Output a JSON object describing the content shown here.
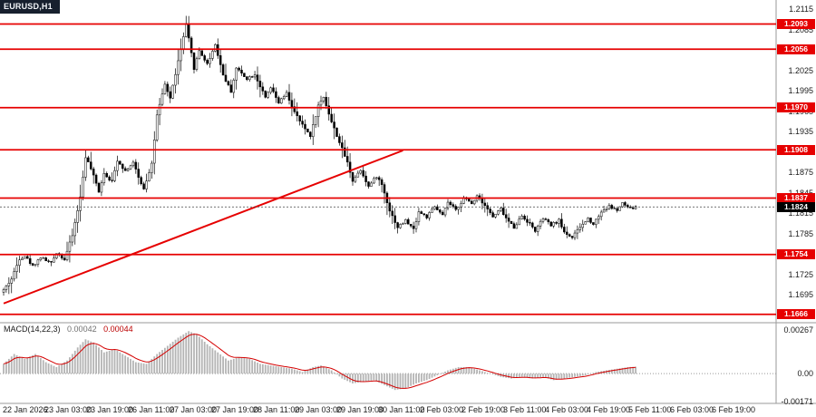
{
  "window": {
    "symbol_label": "EURUSD,H1"
  },
  "colors": {
    "line_red": "#e60000",
    "label_bg_red": "#e60000",
    "current_price_bg": "#000000",
    "candle": "#000000",
    "histogram_gray": "#b4b4b4",
    "signal_red": "#d40000",
    "axis_gray": "#9a9a9a"
  },
  "chart_data": {
    "type": "candlestick",
    "symbol": "EURUSD",
    "timeframe": "H1",
    "price_axis_ticks": [
      1.2115,
      1.2085,
      1.2055,
      1.2025,
      1.1995,
      1.1965,
      1.1935,
      1.1905,
      1.1875,
      1.1845,
      1.1815,
      1.1785,
      1.1755,
      1.1725,
      1.1695,
      1.1665
    ],
    "time_axis_labels": [
      "22 Jan 2026",
      "23 Jan 03:00",
      "23 Jan 19:00",
      "26 Jan 11:00",
      "27 Jan 03:00",
      "27 Jan 19:00",
      "28 Jan 11:00",
      "29 Jan 03:00",
      "29 Jan 19:00",
      "30 Jan 11:00",
      "2 Feb 03:00",
      "2 Feb 19:00",
      "3 Feb 11:00",
      "4 Feb 03:00",
      "4 Feb 19:00",
      "5 Feb 11:00",
      "6 Feb 03:00",
      "6 Feb 19:00"
    ],
    "horizontal_lines": [
      1.2093,
      1.2056,
      1.197,
      1.1908,
      1.1837,
      1.1754,
      1.1666
    ],
    "current_price": 1.1824,
    "trend_line": {
      "from_bar": 0,
      "from_price": 1.1682,
      "to_bar": 151,
      "to_price": 1.1907
    },
    "price_path": [
      [
        0,
        1.1702
      ],
      [
        3,
        1.1718
      ],
      [
        6,
        1.1748
      ],
      [
        8,
        1.1752
      ],
      [
        11,
        1.1737
      ],
      [
        14,
        1.175
      ],
      [
        18,
        1.1741
      ],
      [
        20,
        1.1757
      ],
      [
        23,
        1.1747
      ],
      [
        26,
        1.1782
      ],
      [
        29,
        1.1838
      ],
      [
        31,
        1.1898
      ],
      [
        33,
        1.188
      ],
      [
        36,
        1.1847
      ],
      [
        38,
        1.1874
      ],
      [
        41,
        1.1861
      ],
      [
        43,
        1.1893
      ],
      [
        46,
        1.1877
      ],
      [
        49,
        1.1889
      ],
      [
        51,
        1.1867
      ],
      [
        53,
        1.1851
      ],
      [
        56,
        1.1888
      ],
      [
        58,
        1.1958
      ],
      [
        61,
        1.2004
      ],
      [
        63,
        1.1984
      ],
      [
        66,
        1.2038
      ],
      [
        69,
        1.2092
      ],
      [
        72,
        1.2028
      ],
      [
        74,
        1.2054
      ],
      [
        77,
        1.2034
      ],
      [
        80,
        1.2063
      ],
      [
        83,
        1.2018
      ],
      [
        86,
        1.1994
      ],
      [
        88,
        1.2028
      ],
      [
        92,
        1.2013
      ],
      [
        95,
        1.2019
      ],
      [
        99,
        1.1984
      ],
      [
        101,
        1.1999
      ],
      [
        104,
        1.1977
      ],
      [
        107,
        1.1991
      ],
      [
        110,
        1.1963
      ],
      [
        113,
        1.1944
      ],
      [
        116,
        1.1929
      ],
      [
        119,
        1.1973
      ],
      [
        121,
        1.1986
      ],
      [
        124,
        1.1949
      ],
      [
        127,
        1.1919
      ],
      [
        130,
        1.1889
      ],
      [
        132,
        1.1863
      ],
      [
        135,
        1.1879
      ],
      [
        138,
        1.1854
      ],
      [
        141,
        1.1869
      ],
      [
        143,
        1.1857
      ],
      [
        146,
        1.1819
      ],
      [
        149,
        1.1794
      ],
      [
        152,
        1.1804
      ],
      [
        155,
        1.1791
      ],
      [
        157,
        1.1817
      ],
      [
        160,
        1.1809
      ],
      [
        163,
        1.1824
      ],
      [
        166,
        1.1811
      ],
      [
        168,
        1.1831
      ],
      [
        171,
        1.1819
      ],
      [
        174,
        1.1837
      ],
      [
        177,
        1.1829
      ],
      [
        179,
        1.1841
      ],
      [
        182,
        1.1827
      ],
      [
        185,
        1.1809
      ],
      [
        188,
        1.1821
      ],
      [
        190,
        1.1807
      ],
      [
        193,
        1.1794
      ],
      [
        196,
        1.1811
      ],
      [
        199,
        1.1799
      ],
      [
        201,
        1.1789
      ],
      [
        204,
        1.1807
      ],
      [
        207,
        1.1797
      ],
      [
        210,
        1.1804
      ],
      [
        212,
        1.1787
      ],
      [
        215,
        1.1779
      ],
      [
        218,
        1.1794
      ],
      [
        221,
        1.1807
      ],
      [
        223,
        1.1799
      ],
      [
        226,
        1.1817
      ],
      [
        229,
        1.1825
      ],
      [
        232,
        1.1819
      ],
      [
        234,
        1.1829
      ],
      [
        237,
        1.1821
      ],
      [
        239,
        1.1824
      ]
    ],
    "wick_overrides": [
      {
        "bar": 69,
        "high": 1.2105
      },
      {
        "bar": 31,
        "high": 1.1907
      },
      {
        "bar": 149,
        "low": 1.1785
      },
      {
        "bar": 215,
        "low": 1.1776
      }
    ],
    "macd": {
      "name": "MACD(14,22,3)",
      "value": "0.00042",
      "signal_value": "0.00044",
      "scale_max": 0.00267,
      "scale_min": -0.00171,
      "scale_labels": [
        "0.00267",
        "0.00",
        "-0.00171"
      ],
      "points": [
        [
          0,
          0.0006
        ],
        [
          4,
          0.0012
        ],
        [
          8,
          0.0009
        ],
        [
          12,
          0.0012
        ],
        [
          16,
          0.0007
        ],
        [
          20,
          0.0004
        ],
        [
          24,
          0.0008
        ],
        [
          28,
          0.0016
        ],
        [
          31,
          0.0021
        ],
        [
          34,
          0.0019
        ],
        [
          38,
          0.0013
        ],
        [
          42,
          0.0015
        ],
        [
          46,
          0.0011
        ],
        [
          50,
          0.0007
        ],
        [
          54,
          0.0006
        ],
        [
          58,
          0.0012
        ],
        [
          62,
          0.0017
        ],
        [
          66,
          0.0022
        ],
        [
          70,
          0.0026
        ],
        [
          73,
          0.0024
        ],
        [
          77,
          0.0018
        ],
        [
          81,
          0.0013
        ],
        [
          85,
          0.0008
        ],
        [
          89,
          0.001
        ],
        [
          93,
          0.0009
        ],
        [
          97,
          0.0006
        ],
        [
          101,
          0.0005
        ],
        [
          105,
          0.0004
        ],
        [
          109,
          0.0003
        ],
        [
          113,
          0.0001
        ],
        [
          117,
          0.0004
        ],
        [
          120,
          0.0005
        ],
        [
          124,
          0.0002
        ],
        [
          128,
          -0.0003
        ],
        [
          132,
          -0.0006
        ],
        [
          136,
          -0.0005
        ],
        [
          140,
          -0.0004
        ],
        [
          144,
          -0.0007
        ],
        [
          148,
          -0.001
        ],
        [
          152,
          -0.0009
        ],
        [
          156,
          -0.0006
        ],
        [
          160,
          -0.0004
        ],
        [
          164,
          -0.0001
        ],
        [
          168,
          0.0002
        ],
        [
          172,
          0.0004
        ],
        [
          176,
          0.0004
        ],
        [
          180,
          0.0002
        ],
        [
          184,
          0.0
        ],
        [
          188,
          -0.0002
        ],
        [
          192,
          -0.0003
        ],
        [
          196,
          -0.0002
        ],
        [
          200,
          -0.0003
        ],
        [
          204,
          -0.0002
        ],
        [
          208,
          -0.0004
        ],
        [
          212,
          -0.0003
        ],
        [
          216,
          -0.0002
        ],
        [
          220,
          -0.0001
        ],
        [
          224,
          0.0001
        ],
        [
          228,
          0.0002
        ],
        [
          232,
          0.0003
        ],
        [
          236,
          0.0004
        ],
        [
          239,
          0.00042
        ]
      ]
    }
  }
}
